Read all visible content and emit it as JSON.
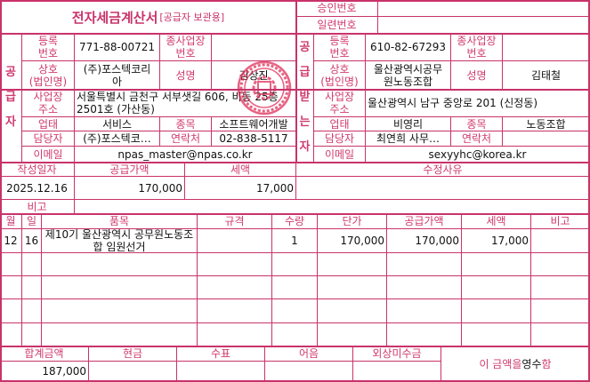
{
  "header": {
    "title": "전자세금계산서",
    "subtitle": "[공급자 보관용]",
    "approval_label": "승인번호",
    "approval_value": "",
    "serial_label": "일련번호",
    "serial_value": ""
  },
  "labels": {
    "reg_no": "등록\n번호",
    "branch_no": "종사업장\n번호",
    "company": "상호\n(법인명)",
    "ceo": "성명",
    "address": "사업장\n주소",
    "biz_type": "업태",
    "biz_item": "종목",
    "contact_person": "담당자",
    "phone": "연락처",
    "email": "이메일"
  },
  "supplier": {
    "section_label": "공\n급\n자",
    "reg_no": "771-88-00721",
    "branch_no": "",
    "company": "(주)포스텍코리\n아",
    "ceo": "김상진",
    "address": "서울특별시 금천구 서부샛길 606, 비동 25층 2501호 (가산동)",
    "biz_type": "서비스",
    "biz_item": "소프트웨어개발",
    "contact_person": "(주)포스텍코…",
    "phone": "02-838-5117",
    "email": "npas_master@npas.co.kr"
  },
  "recipient": {
    "section_label": "공\n급\n받\n는\n자",
    "reg_no": "610-82-67293",
    "branch_no": "",
    "company": "울산광역시공무\n원노동조합",
    "ceo": "김태철",
    "address": "울산광역시 남구 중앙로 201 (신정동)",
    "biz_type": "비영리",
    "biz_item": "노동조합",
    "contact_person": "최연희 사무…",
    "phone": "",
    "email": "sexyyhc@korea.kr"
  },
  "summary": {
    "date_label": "작성일자",
    "supply_label": "공급가액",
    "tax_label": "세액",
    "reason_label": "수정사유",
    "date": "2025.12.16",
    "supply": "170,000",
    "tax": "17,000",
    "reason": "",
    "note_label": "비고",
    "note": ""
  },
  "items": {
    "columns": [
      "월",
      "일",
      "품목",
      "규격",
      "수량",
      "단가",
      "공급가액",
      "세액",
      "비고"
    ],
    "rows": [
      [
        "12",
        "16",
        "제10기 울산광역시 공무원노동조\n합 임원선거",
        "",
        "1",
        "170,000",
        "170,000",
        "17,000",
        ""
      ],
      [
        "",
        "",
        "",
        "",
        "",
        "",
        "",
        "",
        ""
      ],
      [
        "",
        "",
        "",
        "",
        "",
        "",
        "",
        "",
        ""
      ],
      [
        "",
        "",
        "",
        "",
        "",
        "",
        "",
        "",
        ""
      ],
      [
        "",
        "",
        "",
        "",
        "",
        "",
        "",
        "",
        ""
      ]
    ]
  },
  "footer": {
    "total_label": "합계금액",
    "cash_label": "현금",
    "check_label": "수표",
    "bill_label": "어음",
    "credit_label": "외상미수금",
    "total": "187,000",
    "cash": "",
    "check": "",
    "bill": "",
    "credit": "",
    "receipt_prefix": "이 금액을 ",
    "receipt_mode": "영수",
    "receipt_suffix": "함"
  },
  "colors": {
    "accent": "#c8336a",
    "label": "#d03a6e"
  }
}
